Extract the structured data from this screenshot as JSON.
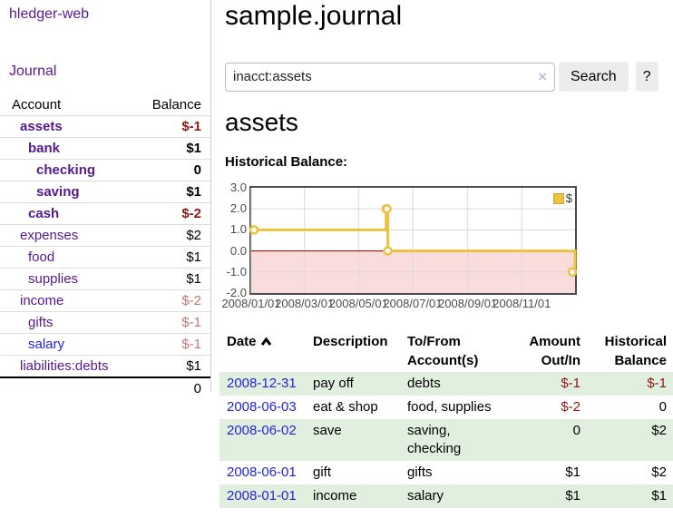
{
  "brand": "hledger-web",
  "nav": {
    "journal": "Journal"
  },
  "sidebar": {
    "headers": {
      "account": "Account",
      "balance": "Balance"
    },
    "accounts": [
      {
        "name": "assets",
        "depth": 1,
        "bold": true,
        "link": "purple",
        "balance": "$-1",
        "balance_style": "neg-strong"
      },
      {
        "name": "bank",
        "depth": 2,
        "bold": true,
        "link": "purple",
        "balance": "$1",
        "balance_style": "pos"
      },
      {
        "name": "checking",
        "depth": 3,
        "bold": true,
        "link": "purple",
        "balance": "0",
        "balance_style": "pos"
      },
      {
        "name": "saving",
        "depth": 3,
        "bold": true,
        "link": "purple",
        "balance": "$1",
        "balance_style": "pos"
      },
      {
        "name": "cash",
        "depth": 2,
        "bold": true,
        "link": "purple",
        "balance": "$-2",
        "balance_style": "neg-strong"
      },
      {
        "name": "expenses",
        "depth": 1,
        "bold": false,
        "link": "purple",
        "balance": "$2",
        "balance_style": "pos"
      },
      {
        "name": "food",
        "depth": 2,
        "bold": false,
        "link": "purple",
        "balance": "$1",
        "balance_style": "pos"
      },
      {
        "name": "supplies",
        "depth": 2,
        "bold": false,
        "link": "purple",
        "balance": "$1",
        "balance_style": "pos"
      },
      {
        "name": "income",
        "depth": 1,
        "bold": false,
        "link": "purple",
        "balance": "$-2",
        "balance_style": "neg-soft"
      },
      {
        "name": "gifts",
        "depth": 2,
        "bold": false,
        "link": "purple",
        "balance": "$-1",
        "balance_style": "neg-soft"
      },
      {
        "name": "salary",
        "depth": 2,
        "bold": false,
        "link": "blue",
        "balance": "$-1",
        "balance_style": "neg-soft"
      },
      {
        "name": "liabilities:debts",
        "depth": 1,
        "bold": false,
        "link": "purple",
        "balance": "$1",
        "balance_style": "pos"
      }
    ],
    "total": "0"
  },
  "header": {
    "title": "sample.journal"
  },
  "search": {
    "value": "inacct:assets",
    "clear_icon": "×",
    "button": "Search",
    "help_button": "?"
  },
  "register": {
    "account_title": "assets",
    "chart_label": "Historical Balance:",
    "table": {
      "headers": [
        "Date",
        "Description",
        "To/From Account(s)",
        "Amount Out/In",
        "Historical Balance"
      ],
      "sorted_by": "Date ascending",
      "rows": [
        {
          "date": "2008-12-31",
          "description": "pay off",
          "accounts": "debts",
          "amount": "$-1",
          "amount_style": "neg-strong",
          "balance": "$-1",
          "balance_style": "neg-strong",
          "striped": true
        },
        {
          "date": "2008-06-03",
          "description": "eat & shop",
          "accounts": "food, supplies",
          "amount": "$-2",
          "amount_style": "neg-strong",
          "balance": "0",
          "balance_style": "pos",
          "striped": false
        },
        {
          "date": "2008-06-02",
          "description": "save",
          "accounts": "saving, checking",
          "amount": "0",
          "amount_style": "pos",
          "balance": "$2",
          "balance_style": "pos",
          "striped": true
        },
        {
          "date": "2008-06-01",
          "description": "gift",
          "accounts": "gifts",
          "amount": "$1",
          "amount_style": "pos",
          "balance": "$2",
          "balance_style": "pos",
          "striped": false
        },
        {
          "date": "2008-01-01",
          "description": "income",
          "accounts": "salary",
          "amount": "$1",
          "amount_style": "pos",
          "balance": "$1",
          "balance_style": "pos",
          "striped": true
        }
      ]
    }
  },
  "chart_data": {
    "type": "line",
    "title": "Historical Balance",
    "line_style": "step",
    "series": [
      {
        "name": "$",
        "color": "#edc240",
        "points": [
          [
            "2008-01-01",
            1
          ],
          [
            "2008-06-01",
            2
          ],
          [
            "2008-06-02",
            2
          ],
          [
            "2008-06-03",
            0
          ],
          [
            "2008-12-31",
            -1
          ]
        ]
      }
    ],
    "ylim": [
      -2,
      3
    ],
    "yticks": [
      "3.0",
      "2.0",
      "1.0",
      "0.0",
      "-1.0",
      "-2.0"
    ],
    "xticks": [
      "2008/01/01",
      "2008/03/01",
      "2008/05/01",
      "2008/07/01",
      "2008/09/01",
      "2008/11/01"
    ],
    "x_range_days": 365,
    "legend_position": "top-right",
    "grid": true,
    "negative_region_shaded": true
  },
  "colors": {
    "link_purple": "#551a8b",
    "link_blue": "#2525d6",
    "neg_strong": "#8f1616",
    "neg_soft": "#c17878",
    "stripe": "#e1efdf",
    "chart_line": "#edc240",
    "chart_neg": "#fbdcdc",
    "chart_zero": "#8b0000",
    "frame": "#4d4d4d"
  }
}
